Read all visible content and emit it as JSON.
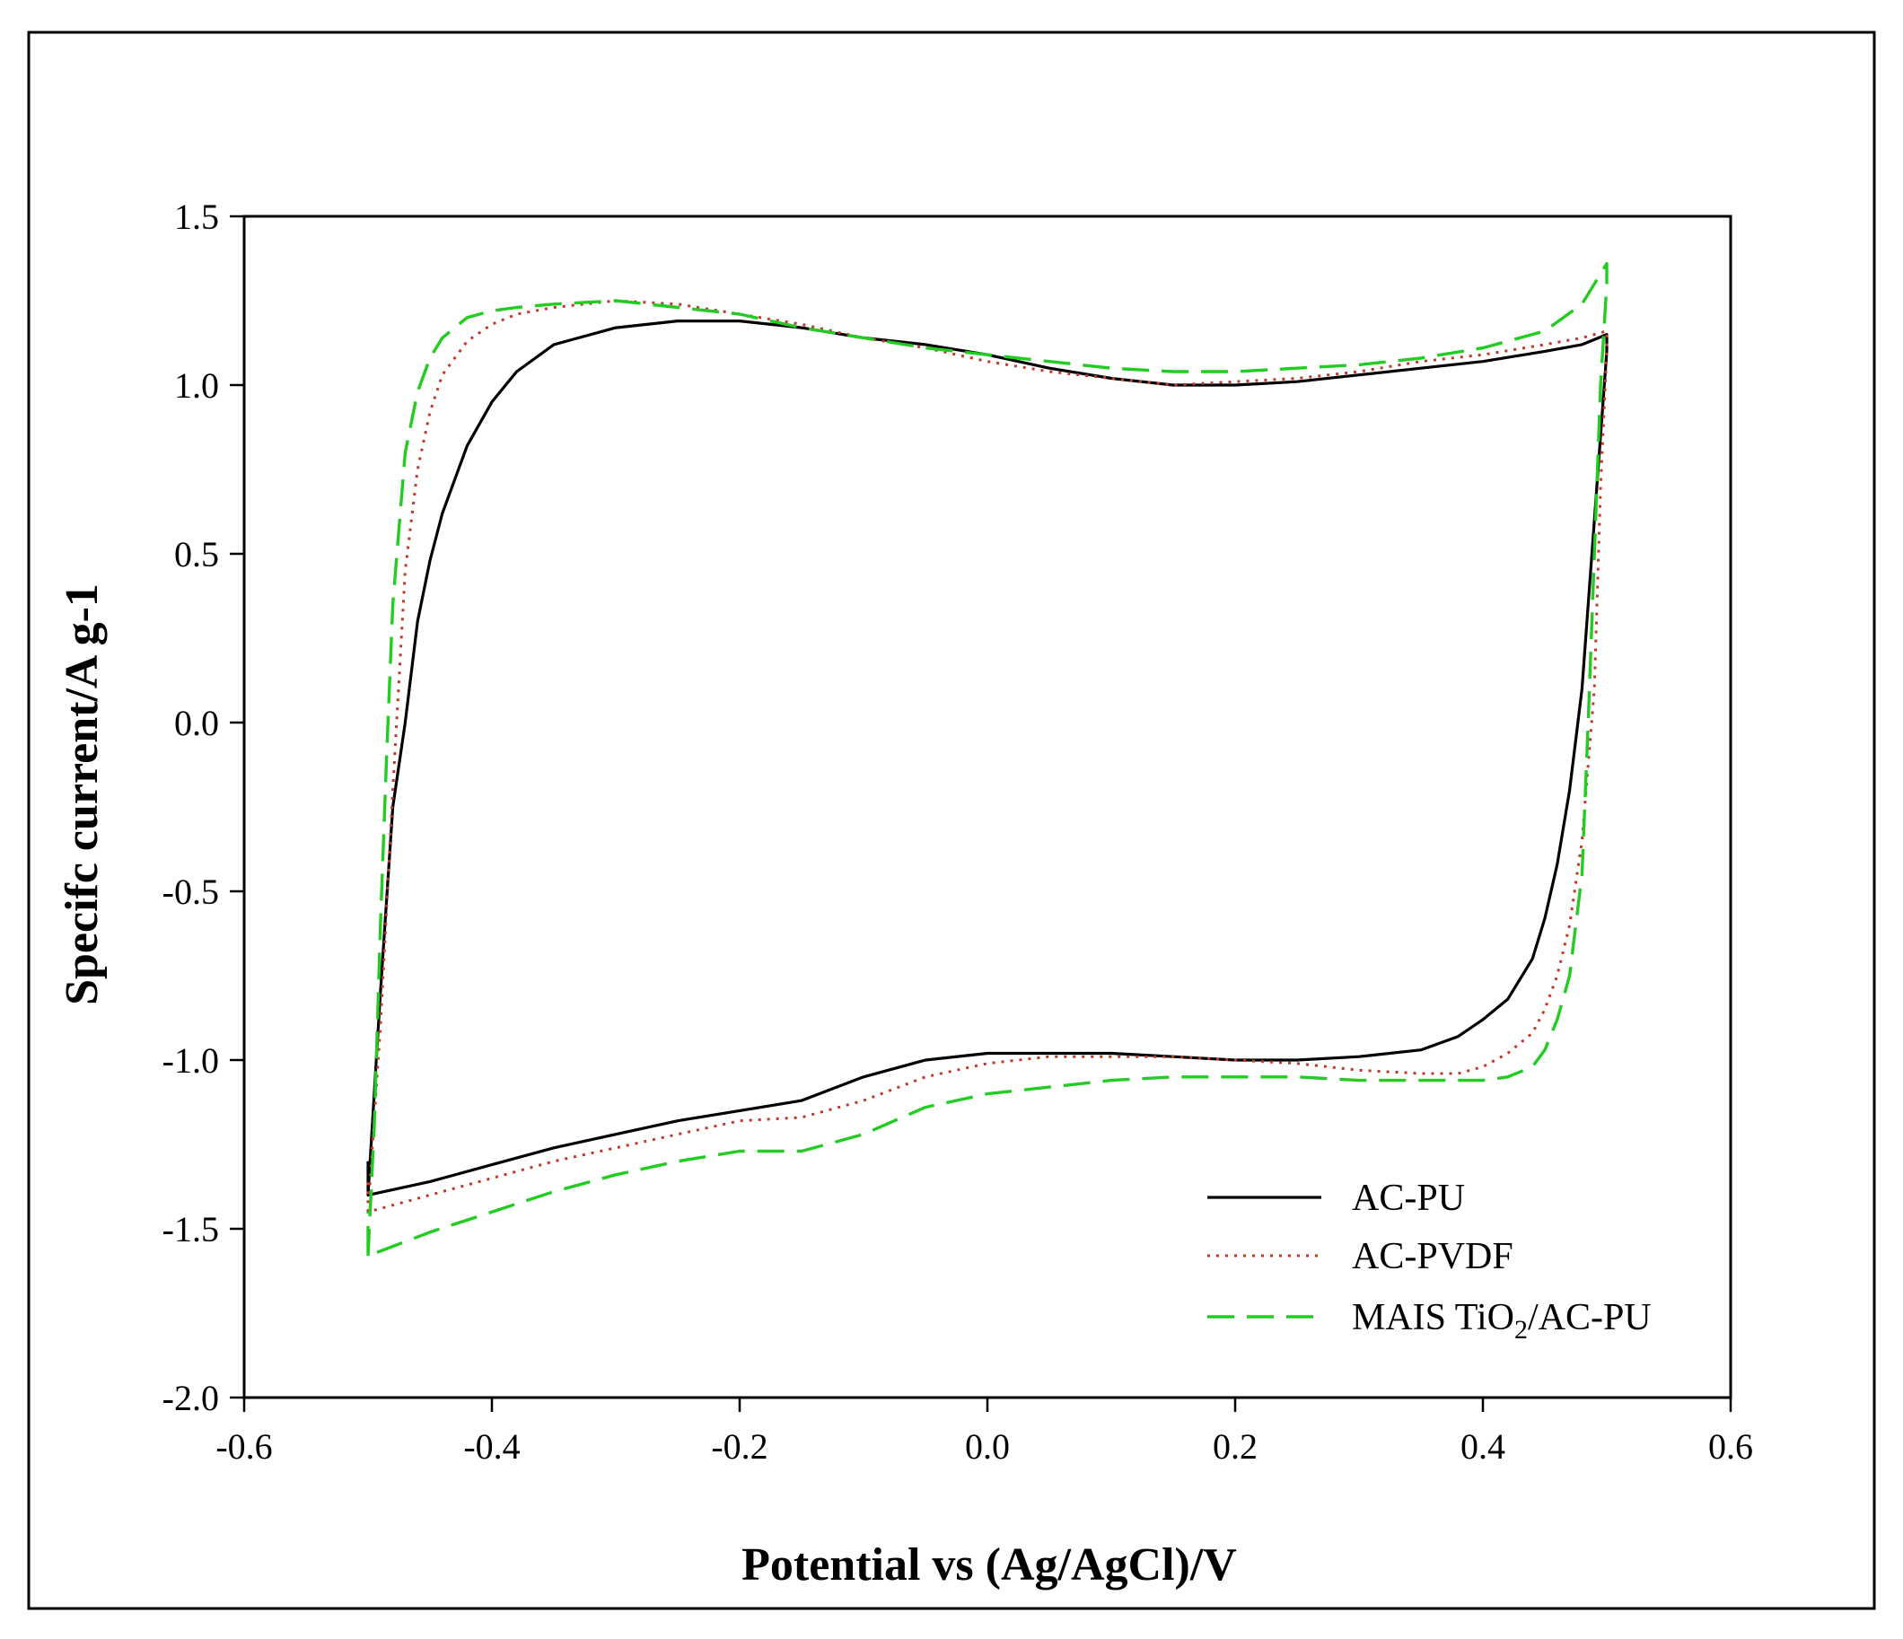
{
  "chart_data": {
    "type": "line",
    "xlabel": "Potential vs (Ag/AgCl)/V",
    "ylabel": "Specifc current/A g-1",
    "xlim": [
      -0.6,
      0.6
    ],
    "ylim": [
      -2.0,
      1.5
    ],
    "xticks": [
      -0.6,
      -0.4,
      -0.2,
      0.0,
      0.2,
      0.4,
      0.6
    ],
    "xtick_labels": [
      "-0.6",
      "-0.4",
      "-0.2",
      "0.0",
      "0.2",
      "0.4",
      "0.6"
    ],
    "yticks": [
      -2.0,
      -1.5,
      -1.0,
      -0.5,
      0.0,
      0.5,
      1.0,
      1.5
    ],
    "ytick_labels": [
      "-2.0",
      "-1.5",
      "-1.0",
      "-0.5",
      "0.0",
      "0.5",
      "1.0",
      "1.5"
    ],
    "grid": false,
    "legend_position": "bottom-right",
    "series": [
      {
        "name": "AC-PU",
        "color": "#000000",
        "dash": "solid",
        "x": [
          -0.5,
          -0.49,
          -0.48,
          -0.47,
          -0.46,
          -0.45,
          -0.44,
          -0.42,
          -0.4,
          -0.38,
          -0.35,
          -0.3,
          -0.25,
          -0.2,
          -0.15,
          -0.1,
          -0.05,
          0.0,
          0.05,
          0.1,
          0.15,
          0.2,
          0.25,
          0.3,
          0.35,
          0.4,
          0.45,
          0.48,
          0.5,
          0.5,
          0.49,
          0.48,
          0.47,
          0.46,
          0.45,
          0.44,
          0.42,
          0.4,
          0.38,
          0.35,
          0.3,
          0.25,
          0.2,
          0.15,
          0.1,
          0.05,
          0.0,
          -0.05,
          -0.1,
          -0.15,
          -0.2,
          -0.25,
          -0.3,
          -0.35,
          -0.4,
          -0.45,
          -0.5,
          -0.5
        ],
        "y": [
          -1.4,
          -0.8,
          -0.25,
          0.0,
          0.3,
          0.48,
          0.62,
          0.82,
          0.95,
          1.04,
          1.12,
          1.17,
          1.19,
          1.19,
          1.17,
          1.14,
          1.12,
          1.09,
          1.05,
          1.02,
          1.0,
          1.0,
          1.01,
          1.03,
          1.05,
          1.07,
          1.1,
          1.12,
          1.15,
          1.1,
          0.6,
          0.1,
          -0.2,
          -0.42,
          -0.58,
          -0.7,
          -0.82,
          -0.88,
          -0.93,
          -0.97,
          -0.99,
          -1.0,
          -1.0,
          -0.99,
          -0.98,
          -0.98,
          -0.98,
          -1.0,
          -1.05,
          -1.12,
          -1.15,
          -1.18,
          -1.22,
          -1.26,
          -1.31,
          -1.36,
          -1.4,
          -1.3
        ]
      },
      {
        "name": "AC-PVDF",
        "color": "#c0392b",
        "dash": "dotted",
        "x": [
          -0.5,
          -0.49,
          -0.48,
          -0.47,
          -0.46,
          -0.45,
          -0.44,
          -0.42,
          -0.4,
          -0.38,
          -0.35,
          -0.3,
          -0.25,
          -0.2,
          -0.15,
          -0.1,
          -0.05,
          0.0,
          0.05,
          0.1,
          0.15,
          0.2,
          0.25,
          0.3,
          0.35,
          0.4,
          0.45,
          0.48,
          0.5,
          0.5,
          0.495,
          0.49,
          0.48,
          0.47,
          0.46,
          0.45,
          0.44,
          0.42,
          0.4,
          0.38,
          0.35,
          0.3,
          0.25,
          0.2,
          0.15,
          0.1,
          0.05,
          0.0,
          -0.05,
          -0.1,
          -0.15,
          -0.2,
          -0.25,
          -0.3,
          -0.35,
          -0.4,
          -0.45,
          -0.5,
          -0.5
        ],
        "y": [
          -1.45,
          -0.9,
          -0.2,
          0.45,
          0.75,
          0.92,
          1.03,
          1.13,
          1.18,
          1.21,
          1.23,
          1.25,
          1.24,
          1.21,
          1.18,
          1.14,
          1.11,
          1.07,
          1.04,
          1.02,
          1.0,
          1.01,
          1.02,
          1.04,
          1.07,
          1.09,
          1.12,
          1.14,
          1.16,
          1.1,
          0.7,
          0.1,
          -0.35,
          -0.6,
          -0.75,
          -0.85,
          -0.92,
          -0.98,
          -1.02,
          -1.04,
          -1.04,
          -1.03,
          -1.01,
          -1.0,
          -0.99,
          -0.99,
          -0.99,
          -1.01,
          -1.05,
          -1.12,
          -1.17,
          -1.18,
          -1.22,
          -1.26,
          -1.3,
          -1.35,
          -1.4,
          -1.45,
          -1.35
        ]
      },
      {
        "name": "MAIS TiO2/AC-PU",
        "color": "#22cc22",
        "dash": "dashed",
        "x": [
          -0.5,
          -0.495,
          -0.49,
          -0.485,
          -0.48,
          -0.47,
          -0.46,
          -0.45,
          -0.44,
          -0.42,
          -0.4,
          -0.38,
          -0.35,
          -0.3,
          -0.25,
          -0.2,
          -0.15,
          -0.1,
          -0.05,
          0.0,
          0.05,
          0.1,
          0.15,
          0.2,
          0.25,
          0.3,
          0.35,
          0.4,
          0.45,
          0.48,
          0.5,
          0.5,
          0.495,
          0.49,
          0.485,
          0.48,
          0.47,
          0.46,
          0.45,
          0.44,
          0.42,
          0.4,
          0.38,
          0.35,
          0.3,
          0.25,
          0.2,
          0.15,
          0.1,
          0.05,
          0.0,
          -0.05,
          -0.1,
          -0.15,
          -0.2,
          -0.25,
          -0.3,
          -0.35,
          -0.4,
          -0.45,
          -0.5,
          -0.5
        ],
        "y": [
          -1.58,
          -1.2,
          -0.6,
          -0.1,
          0.35,
          0.8,
          0.98,
          1.08,
          1.14,
          1.2,
          1.22,
          1.23,
          1.24,
          1.25,
          1.23,
          1.21,
          1.17,
          1.14,
          1.11,
          1.09,
          1.07,
          1.05,
          1.04,
          1.04,
          1.05,
          1.06,
          1.08,
          1.11,
          1.16,
          1.24,
          1.36,
          1.3,
          1.0,
          0.5,
          0.0,
          -0.45,
          -0.75,
          -0.88,
          -0.97,
          -1.02,
          -1.05,
          -1.06,
          -1.06,
          -1.06,
          -1.06,
          -1.05,
          -1.05,
          -1.05,
          -1.06,
          -1.08,
          -1.1,
          -1.14,
          -1.22,
          -1.27,
          -1.27,
          -1.3,
          -1.34,
          -1.39,
          -1.45,
          -1.51,
          -1.58,
          -1.45
        ]
      }
    ]
  }
}
